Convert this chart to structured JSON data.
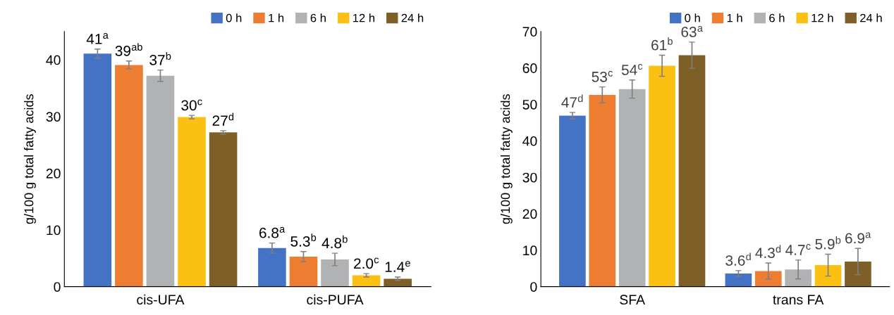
{
  "chart_data": [
    {
      "type": "bar",
      "ylabel": "g/100 g total fatty acids",
      "categories": [
        "cis-UFA",
        "cis-PUFA"
      ],
      "ylim": [
        0,
        45
      ],
      "yticks": [
        0,
        10,
        20,
        30,
        40
      ],
      "grid": false,
      "legend": "top right",
      "series": [
        {
          "name": "0 h",
          "color": "#4472c4",
          "values": [
            41.1,
            6.8
          ],
          "errors": [
            0.8,
            0.9
          ],
          "value_labels": [
            "41$^{a}$",
            "6.8$^{a}$"
          ]
        },
        {
          "name": "1 h",
          "color": "#ed7d31",
          "values": [
            39.1,
            5.3
          ],
          "errors": [
            0.7,
            0.9
          ],
          "value_labels": [
            "39$^{ab}$",
            "5.3$^{b}$"
          ]
        },
        {
          "name": "6 h",
          "color": "#b1b2b4",
          "values": [
            37.2,
            4.8
          ],
          "errors": [
            1.0,
            1.1
          ],
          "value_labels": [
            "37$^{b}$",
            "4.8$^{b}$"
          ]
        },
        {
          "name": "12 h",
          "color": "#fbc012",
          "values": [
            29.9,
            2.0
          ],
          "errors": [
            0.3,
            0.3
          ],
          "value_labels": [
            "30$^{c}$",
            "2.0$^{c}$"
          ]
        },
        {
          "name": "24 h",
          "color": "#7f5f28",
          "values": [
            27.2,
            1.4
          ],
          "errors": [
            0.3,
            0.3
          ],
          "value_labels": [
            "27$^{d}$",
            "1.4$^{e}$"
          ]
        }
      ]
    },
    {
      "type": "bar",
      "ylabel": "g/100 g total fatty acids",
      "categories": [
        "SFA",
        "trans FA"
      ],
      "ylim": [
        0,
        70
      ],
      "yticks": [
        0,
        10,
        20,
        30,
        40,
        50,
        60,
        70
      ],
      "grid": false,
      "legend": "top right",
      "series": [
        {
          "name": "0 h",
          "color": "#4472c4",
          "values": [
            46.9,
            3.6
          ],
          "errors": [
            0.9,
            0.8
          ],
          "value_labels": [
            "47$^{d}$",
            "3.6$^{d}$"
          ]
        },
        {
          "name": "1 h",
          "color": "#ed7d31",
          "values": [
            52.6,
            4.3
          ],
          "errors": [
            2.2,
            2.2
          ],
          "value_labels": [
            "53$^{c}$",
            "4.3$^{d}$"
          ]
        },
        {
          "name": "6 h",
          "color": "#b1b2b4",
          "values": [
            54.2,
            4.7
          ],
          "errors": [
            2.5,
            2.6
          ],
          "value_labels": [
            "54$^{c}$",
            "4.7$^{c}$"
          ]
        },
        {
          "name": "12 h",
          "color": "#fbc012",
          "values": [
            60.6,
            5.9
          ],
          "errors": [
            2.9,
            3.0
          ],
          "value_labels": [
            "61$^{b}$",
            "5.9$^{b}$"
          ]
        },
        {
          "name": "24 h",
          "color": "#7f5f28",
          "values": [
            63.5,
            6.9
          ],
          "errors": [
            3.6,
            3.6
          ],
          "value_labels": [
            "63$^{a}$",
            "6.9$^{a}$"
          ]
        }
      ]
    }
  ]
}
